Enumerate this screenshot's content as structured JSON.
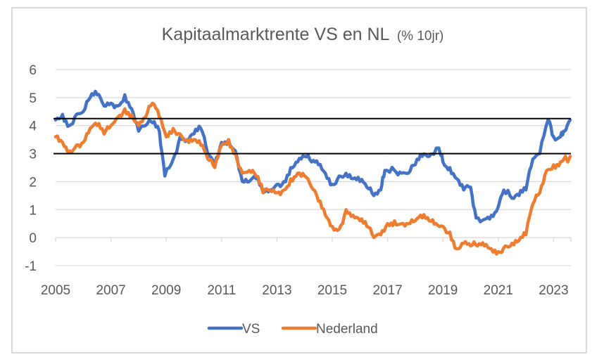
{
  "chart_data": {
    "type": "line",
    "title": "Kapitaalmarktrente VS en NL",
    "title_suffix": "(% 10jr)",
    "xlabel": "",
    "ylabel": "",
    "xlim": [
      2005,
      2023.6
    ],
    "ylim": [
      -1,
      6
    ],
    "x_ticks": [
      2005,
      2007,
      2009,
      2011,
      2013,
      2015,
      2017,
      2019,
      2021,
      2023
    ],
    "x_tick_labels": [
      "2005",
      "2007",
      "2009",
      "2011",
      "2013",
      "2015",
      "2017",
      "2019",
      "2021",
      "2023"
    ],
    "y_ticks": [
      6,
      5,
      4,
      3,
      2,
      1,
      0,
      -1
    ],
    "y_tick_labels": [
      "6",
      "5",
      "4",
      "3",
      "2",
      "1",
      "0",
      "-1"
    ],
    "grid": "horizontal",
    "legend_position": "bottom",
    "reference_lines": [
      {
        "value": 4.25,
        "color": "#000000"
      },
      {
        "value": 3.0,
        "color": "#000000"
      }
    ],
    "series": [
      {
        "name": "VS",
        "color": "#4472c4",
        "x": [
          2005.0,
          2005.25,
          2005.5,
          2005.75,
          2006.0,
          2006.25,
          2006.5,
          2006.75,
          2007.0,
          2007.25,
          2007.5,
          2007.75,
          2008.0,
          2008.25,
          2008.5,
          2008.75,
          2008.95,
          2009.25,
          2009.5,
          2009.75,
          2010.0,
          2010.25,
          2010.5,
          2010.75,
          2011.0,
          2011.25,
          2011.5,
          2011.75,
          2012.0,
          2012.25,
          2012.5,
          2012.75,
          2013.0,
          2013.25,
          2013.5,
          2013.75,
          2014.0,
          2014.25,
          2014.5,
          2014.75,
          2015.0,
          2015.25,
          2015.5,
          2015.75,
          2016.0,
          2016.25,
          2016.5,
          2016.75,
          2016.9,
          2017.25,
          2017.5,
          2017.75,
          2018.0,
          2018.25,
          2018.5,
          2018.85,
          2019.0,
          2019.25,
          2019.5,
          2019.75,
          2020.0,
          2020.2,
          2020.5,
          2020.75,
          2021.0,
          2021.2,
          2021.5,
          2021.75,
          2022.0,
          2022.25,
          2022.5,
          2022.8,
          2023.0,
          2023.25,
          2023.4,
          2023.6
        ],
        "values": [
          4.2,
          4.4,
          4.0,
          4.4,
          4.5,
          5.0,
          5.1,
          4.7,
          4.8,
          4.7,
          5.1,
          4.6,
          3.8,
          4.0,
          4.1,
          3.8,
          2.2,
          2.8,
          3.6,
          3.5,
          3.7,
          3.9,
          3.0,
          2.6,
          3.4,
          3.5,
          3.1,
          2.0,
          2.0,
          2.1,
          1.6,
          1.7,
          1.9,
          2.0,
          2.5,
          2.7,
          2.9,
          2.7,
          2.6,
          2.3,
          1.9,
          2.2,
          2.3,
          2.1,
          2.0,
          1.8,
          1.5,
          1.7,
          2.4,
          2.4,
          2.3,
          2.3,
          2.6,
          2.9,
          2.9,
          3.2,
          2.7,
          2.5,
          2.1,
          1.7,
          1.8,
          0.7,
          0.65,
          0.8,
          1.1,
          1.7,
          1.4,
          1.5,
          1.7,
          2.8,
          3.0,
          4.2,
          3.6,
          3.6,
          3.8,
          4.2
        ]
      },
      {
        "name": "Nederland",
        "color": "#ed7d31",
        "x": [
          2005.0,
          2005.25,
          2005.5,
          2005.75,
          2006.0,
          2006.25,
          2006.5,
          2006.75,
          2007.0,
          2007.25,
          2007.5,
          2007.75,
          2008.0,
          2008.25,
          2008.5,
          2008.75,
          2009.0,
          2009.25,
          2009.5,
          2009.75,
          2010.0,
          2010.25,
          2010.5,
          2010.75,
          2011.0,
          2011.25,
          2011.5,
          2011.75,
          2012.0,
          2012.25,
          2012.5,
          2012.75,
          2013.0,
          2013.25,
          2013.5,
          2013.75,
          2014.0,
          2014.25,
          2014.5,
          2014.75,
          2015.0,
          2015.25,
          2015.5,
          2015.75,
          2016.0,
          2016.25,
          2016.5,
          2016.75,
          2017.0,
          2017.25,
          2017.5,
          2017.75,
          2018.0,
          2018.25,
          2018.5,
          2018.75,
          2019.0,
          2019.25,
          2019.5,
          2019.75,
          2020.0,
          2020.25,
          2020.5,
          2020.75,
          2021.0,
          2021.25,
          2021.5,
          2021.75,
          2022.0,
          2022.25,
          2022.5,
          2022.75,
          2023.0,
          2023.25,
          2023.6
        ],
        "values": [
          3.6,
          3.4,
          3.1,
          3.3,
          3.4,
          3.9,
          4.0,
          3.7,
          4.0,
          4.3,
          4.6,
          4.4,
          4.0,
          4.3,
          4.8,
          4.3,
          3.6,
          3.9,
          3.7,
          3.5,
          3.5,
          3.3,
          2.8,
          2.5,
          3.3,
          3.5,
          3.0,
          2.3,
          2.4,
          2.2,
          1.6,
          1.7,
          1.6,
          1.7,
          2.1,
          2.3,
          2.2,
          1.8,
          1.3,
          0.8,
          0.4,
          0.3,
          1.0,
          0.8,
          0.6,
          0.4,
          0.0,
          0.1,
          0.5,
          0.6,
          0.5,
          0.5,
          0.6,
          0.7,
          0.6,
          0.5,
          0.4,
          0.2,
          -0.4,
          -0.2,
          -0.3,
          -0.3,
          -0.3,
          -0.4,
          -0.5,
          -0.3,
          -0.2,
          -0.1,
          0.1,
          1.2,
          1.6,
          2.4,
          2.6,
          2.7,
          2.9
        ]
      }
    ]
  }
}
